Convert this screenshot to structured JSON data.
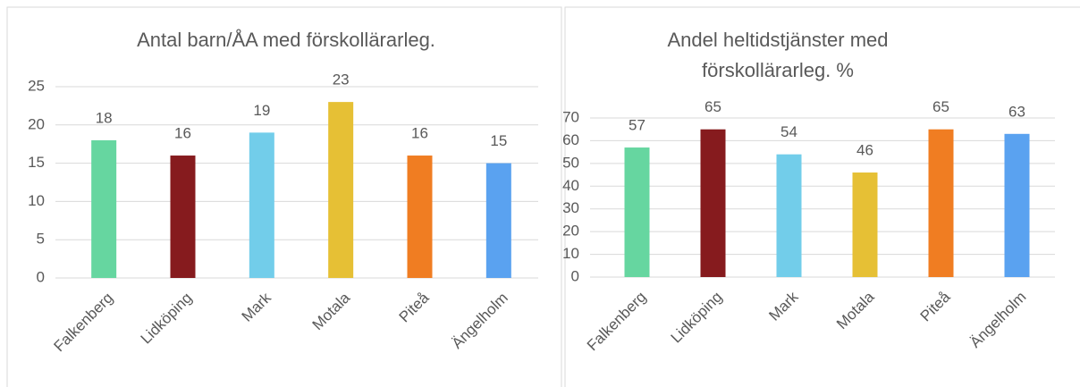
{
  "chart_data": [
    {
      "type": "bar",
      "title": "Antal barn/ÅA med förskollärarleg.",
      "categories": [
        "Falkenberg",
        "Lidköping",
        "Mark",
        "Motala",
        "Piteå",
        "Ängelholm"
      ],
      "values": [
        18,
        16,
        19,
        23,
        16,
        15
      ],
      "colors": [
        "#66d6a0",
        "#861b1e",
        "#72cdea",
        "#e6c035",
        "#f07d22",
        "#5aa2f0"
      ],
      "ylim": [
        0,
        25
      ],
      "yticks": [
        0,
        5,
        10,
        15,
        20,
        25
      ],
      "grid": true
    },
    {
      "type": "bar",
      "title": "Andel heltidstjänster med förskollärarleg. %",
      "categories": [
        "Falkenberg",
        "Lidköping",
        "Mark",
        "Motala",
        "Piteå",
        "Ängelholm"
      ],
      "values": [
        57,
        65,
        54,
        46,
        65,
        63
      ],
      "colors": [
        "#66d6a0",
        "#861b1e",
        "#72cdea",
        "#e6c035",
        "#f07d22",
        "#5aa2f0"
      ],
      "ylim": [
        0,
        70
      ],
      "yticks": [
        0,
        10,
        20,
        30,
        40,
        50,
        60,
        70
      ],
      "grid": true
    }
  ]
}
